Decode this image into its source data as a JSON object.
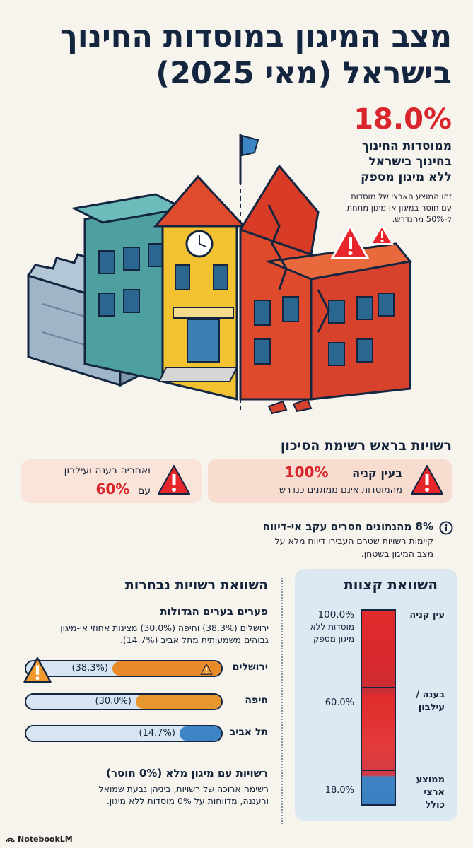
{
  "title": {
    "line1": "מצב המיגון במוסדות החינוך",
    "line2": "בישראל (מאי 2025)"
  },
  "hero": {
    "percent": "18.0%",
    "headline_line1": "ממוסדות החינוך",
    "headline_line2": "בחינוך בישראל",
    "headline_line3": "ללא מיגון מספק",
    "note_line1": "זהו המוצע הארצי של מוסדות",
    "note_line2": "עם חוסר במיגון או מיגון מתחת",
    "note_line3": "ל-50% מהנדרש."
  },
  "risk": {
    "title": "רשויות בראש רשימת הסיכון",
    "card_ein": {
      "name": "בעין קניה",
      "percent": "100%",
      "subtitle": "מהמוסדות אינם ממוגנים כנדרש"
    },
    "card_bina": {
      "text": "ואחריה בענה ועילבון",
      "prefix": "עם",
      "percent": "60%"
    }
  },
  "missing": {
    "headline": "8% מהנתונים חסרים עקב אי-דיווח",
    "body_line1": "קיימות רשויות שטרם העבירו דיווח מלא על",
    "body_line2": "מצב המיגון בשטחן."
  },
  "extremes": {
    "title": "השוואת קצוות",
    "items": [
      {
        "label_line1": "עין קניה",
        "label_line2": "",
        "value": "100.0%",
        "value_note_line1": "מוסדות ללא",
        "value_note_line2": "מיגון מספק"
      },
      {
        "label_line1": "בענה /",
        "label_line2": "עילבון",
        "value": "60.0%",
        "value_note_line1": "",
        "value_note_line2": ""
      },
      {
        "label_line1": "ממוצע",
        "label_line2": "ארצי",
        "label_line3": "כולל",
        "value": "18.0%",
        "value_note_line1": "",
        "value_note_line2": ""
      }
    ],
    "fill_fractions": [
      1.0,
      0.6,
      0.18
    ]
  },
  "comparison": {
    "title": "השוואת רשויות נבחרות",
    "gap_title": "פערים בערים הגדולות",
    "gap_body_line1": "ירושלים (38.3%) וחיפה (30.0%) מצינות אחוזי אי-מיגון",
    "gap_body_line2": "גבוהים משמעותית מתל אביב (14.7%).",
    "bars": [
      {
        "city": "ירושלים",
        "label": "(38.3%)",
        "value": 38.3,
        "color": "#e8892a"
      },
      {
        "city": "חיפה",
        "label": "(30.0%)",
        "value": 30.0,
        "color": "#e8962e"
      },
      {
        "city": "תל אביב",
        "label": "(14.7%)",
        "value": 14.7,
        "color": "#3d84c6"
      }
    ]
  },
  "full": {
    "title": "רשויות עם מיגון מלא (0% חוסר)",
    "body_line1": "רשימה ארוכה של רשויות, ביניהן גבעת שמואל",
    "body_line2": "ורעננה, מדווחות על 0% מוסדות ללא מיגון."
  },
  "brand": {
    "name": "NotebookLM"
  },
  "colors": {
    "navy": "#13253f",
    "red": "#d8262c",
    "orange": "#e8892a",
    "blue": "#3d84c6"
  }
}
